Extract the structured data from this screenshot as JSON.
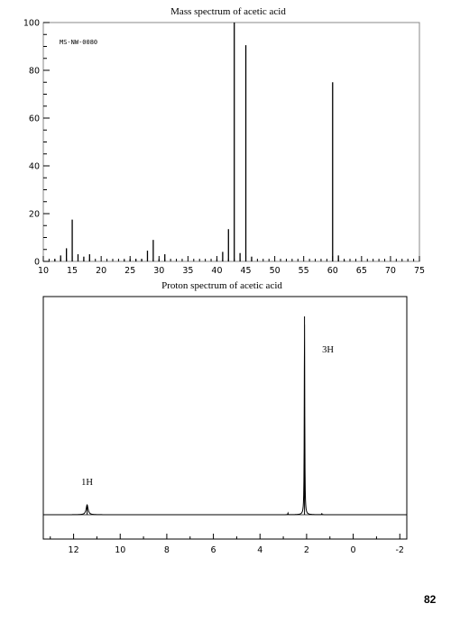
{
  "chart_data": [
    {
      "type": "bar",
      "title": "Mass spectrum of acetic acid",
      "code": "MS-NW-0080",
      "xlabel": "",
      "ylabel": "",
      "xlim": [
        10,
        75
      ],
      "ylim": [
        0,
        100
      ],
      "x_ticks": [
        10,
        15,
        20,
        25,
        30,
        35,
        40,
        45,
        50,
        55,
        60,
        65,
        70,
        75
      ],
      "y_ticks": [
        0,
        20,
        40,
        60,
        80,
        100
      ],
      "grid": false,
      "peaks": [
        {
          "x": 12,
          "y": 1
        },
        {
          "x": 13,
          "y": 2.5
        },
        {
          "x": 14,
          "y": 5.5
        },
        {
          "x": 15,
          "y": 17.5
        },
        {
          "x": 16,
          "y": 3
        },
        {
          "x": 17,
          "y": 2
        },
        {
          "x": 18,
          "y": 3
        },
        {
          "x": 24,
          "y": 0.5
        },
        {
          "x": 25,
          "y": 1
        },
        {
          "x": 26,
          "y": 1
        },
        {
          "x": 27,
          "y": 1
        },
        {
          "x": 28,
          "y": 4.5
        },
        {
          "x": 29,
          "y": 9
        },
        {
          "x": 30,
          "y": 1
        },
        {
          "x": 31,
          "y": 3
        },
        {
          "x": 40,
          "y": 1
        },
        {
          "x": 41,
          "y": 4
        },
        {
          "x": 42,
          "y": 13.5
        },
        {
          "x": 43,
          "y": 100
        },
        {
          "x": 44,
          "y": 3.5
        },
        {
          "x": 45,
          "y": 90.5
        },
        {
          "x": 46,
          "y": 2
        },
        {
          "x": 60,
          "y": 75
        },
        {
          "x": 61,
          "y": 2.5
        },
        {
          "x": 62,
          "y": 0.5
        }
      ]
    },
    {
      "type": "line",
      "title": "Proton spectrum of acetic acid",
      "xlabel": "",
      "ylabel": "",
      "xlim": [
        13.3,
        -2.3
      ],
      "x_ticks": [
        12,
        10,
        8,
        6,
        4,
        2,
        0,
        -2
      ],
      "x_tick_labels": [
        "12",
        "10",
        "8",
        "6",
        "4",
        "2",
        "0",
        "-2"
      ],
      "grid": false,
      "peaks": [
        {
          "shift": 11.42,
          "height": 0.05,
          "label": "1H"
        },
        {
          "shift": 2.09,
          "height": 1.0,
          "label": "3H"
        },
        {
          "shift": 2.8,
          "height": 0.008,
          "label": ""
        },
        {
          "shift": 1.35,
          "height": 0.006,
          "label": ""
        }
      ]
    }
  ],
  "page_number": "82"
}
